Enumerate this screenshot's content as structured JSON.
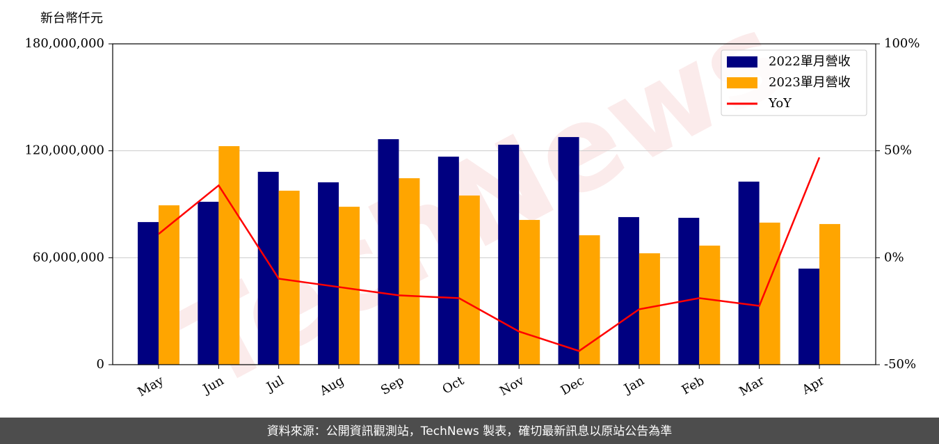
{
  "chart_data": {
    "type": "bar",
    "y_label": "新台幣仟元",
    "watermark": "TechNews",
    "footer": "資料來源：公開資訊觀測站，TechNews 製表，確切最新訊息以原站公告為準",
    "categories": [
      "May",
      "Jun",
      "Jul",
      "Aug",
      "Sep",
      "Oct",
      "Nov",
      "Dec",
      "Jan",
      "Feb",
      "Mar",
      "Apr"
    ],
    "series": [
      {
        "name": "2022單月營收",
        "color": "#000080",
        "values": [
          80000000,
          91400000,
          108200000,
          102300000,
          126500000,
          116700000,
          123400000,
          127700000,
          82800000,
          82400000,
          102700000,
          53900000
        ]
      },
      {
        "name": "2023單月營收",
        "color": "#ffa500",
        "values": [
          89400000,
          122600000,
          97600000,
          88600000,
          104600000,
          94900000,
          81200000,
          72600000,
          62500000,
          66800000,
          79700000,
          78900000
        ]
      },
      {
        "name": "YoY",
        "color": "#ff0000",
        "type": "line",
        "axis": "y2",
        "values": [
          11.1,
          33.8,
          -9.8,
          -13.7,
          -17.6,
          -18.9,
          -34.5,
          -43.6,
          -24.1,
          -18.9,
          -22.5,
          46.9
        ]
      }
    ],
    "ylim": [
      0,
      180000000
    ],
    "yticks": [
      0,
      {
        "value": 60000000,
        "label": "60,000,000"
      },
      {
        "value": 120000000,
        "label": "120,000,000"
      },
      {
        "value": 180000000,
        "label": "180,000,000"
      }
    ],
    "y2lim": [
      -50,
      100
    ],
    "y2ticks": [
      {
        "value": -50,
        "label": "-50%"
      },
      {
        "value": 0,
        "label": "0%"
      },
      {
        "value": 50,
        "label": "50%"
      },
      {
        "value": 100,
        "label": "100%"
      }
    ],
    "grid": true,
    "legend": "upper right"
  }
}
